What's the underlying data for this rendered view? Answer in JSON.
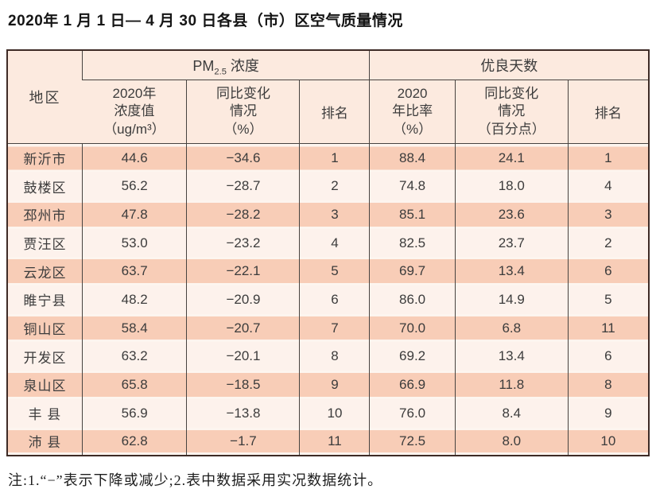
{
  "page": {
    "title": "2020年 1 月 1 日— 4 月 30 日各县（市）区空气质量情况",
    "note": "注:1.“−”表示下降或减少;2.表中数据采用实况数据统计。"
  },
  "colors": {
    "header_bg": "#fceadf",
    "row_odd_bg": "#f8cdb7",
    "row_even_bg": "#fdf2ec",
    "outer_border": "#3e2b26",
    "inner_rule": "#474340"
  },
  "table": {
    "corner_label": "地区",
    "group_pm": {
      "prefix": "PM",
      "sub": "2.5",
      "suffix": " 浓度"
    },
    "group_good": {
      "label": "优良天数"
    },
    "subheaders": {
      "pm_value": "2020年\n浓度值\n（ug/m³）",
      "pm_change": "同比变化\n情况\n（%）",
      "pm_rank": "排名",
      "ratio": "2020\n年比率\n（%）",
      "ratio_change": "同比变化\n情况\n（百分点）",
      "ratio_rank": "排名"
    },
    "rows": [
      {
        "region": "新沂市",
        "pm_value": "44.6",
        "pm_change": "−34.6",
        "pm_rank": "1",
        "ratio": "88.4",
        "ratio_change": "24.1",
        "ratio_rank": "1"
      },
      {
        "region": "鼓楼区",
        "pm_value": "56.2",
        "pm_change": "−28.7",
        "pm_rank": "2",
        "ratio": "74.8",
        "ratio_change": "18.0",
        "ratio_rank": "4"
      },
      {
        "region": "邳州市",
        "pm_value": "47.8",
        "pm_change": "−28.2",
        "pm_rank": "3",
        "ratio": "85.1",
        "ratio_change": "23.6",
        "ratio_rank": "3"
      },
      {
        "region": "贾汪区",
        "pm_value": "53.0",
        "pm_change": "−23.2",
        "pm_rank": "4",
        "ratio": "82.5",
        "ratio_change": "23.7",
        "ratio_rank": "2"
      },
      {
        "region": "云龙区",
        "pm_value": "63.7",
        "pm_change": "−22.1",
        "pm_rank": "5",
        "ratio": "69.7",
        "ratio_change": "13.4",
        "ratio_rank": "6"
      },
      {
        "region": "睢宁县",
        "pm_value": "48.2",
        "pm_change": "−20.9",
        "pm_rank": "6",
        "ratio": "86.0",
        "ratio_change": "14.9",
        "ratio_rank": "5"
      },
      {
        "region": "铜山区",
        "pm_value": "58.4",
        "pm_change": "−20.7",
        "pm_rank": "7",
        "ratio": "70.0",
        "ratio_change": "6.8",
        "ratio_rank": "11"
      },
      {
        "region": "开发区",
        "pm_value": "63.2",
        "pm_change": "−20.1",
        "pm_rank": "8",
        "ratio": "69.2",
        "ratio_change": "13.4",
        "ratio_rank": "6"
      },
      {
        "region": "泉山区",
        "pm_value": "65.8",
        "pm_change": "−18.5",
        "pm_rank": "9",
        "ratio": "66.9",
        "ratio_change": "11.8",
        "ratio_rank": "8"
      },
      {
        "region": "丰 县",
        "pm_value": "56.9",
        "pm_change": "−13.8",
        "pm_rank": "10",
        "ratio": "76.0",
        "ratio_change": "8.4",
        "ratio_rank": "9"
      },
      {
        "region": "沛 县",
        "pm_value": "62.8",
        "pm_change": "−1.7",
        "pm_rank": "11",
        "ratio": "72.5",
        "ratio_change": "8.0",
        "ratio_rank": "10"
      }
    ]
  }
}
